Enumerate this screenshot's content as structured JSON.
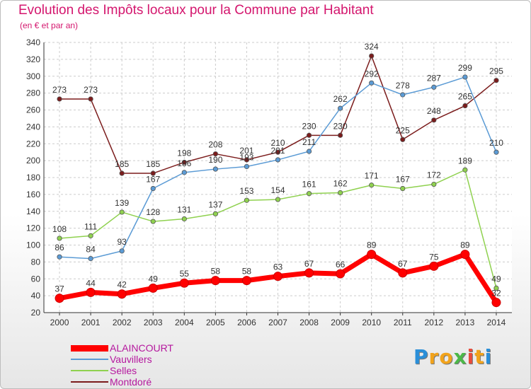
{
  "chart_data": {
    "type": "line",
    "title": "Evolution des Impôts locaux pour la Commune par Habitant",
    "subtitle": "(en € et par an)",
    "xlabel": "",
    "ylabel": "",
    "x": [
      "2000",
      "2001",
      "2002",
      "2003",
      "2004",
      "2005",
      "2006",
      "2007",
      "2008",
      "2009",
      "2010",
      "2011",
      "2012",
      "2013",
      "2014"
    ],
    "ylim": [
      20,
      340
    ],
    "yticks": [
      20,
      40,
      60,
      80,
      100,
      120,
      140,
      160,
      180,
      200,
      220,
      240,
      260,
      280,
      300,
      320,
      340
    ],
    "grid": true,
    "legend_position": "bottom-left",
    "series": [
      {
        "name": "ALAINCOURT",
        "color": "#ff0000",
        "values": [
          37,
          44,
          42,
          49,
          55,
          58,
          58,
          63,
          67,
          66,
          89,
          67,
          75,
          89,
          32
        ]
      },
      {
        "name": "Vauvillers",
        "color": "#5b9bd5",
        "values": [
          86,
          84,
          93,
          167,
          186,
          190,
          193,
          201,
          211,
          262,
          292,
          278,
          287,
          299,
          210
        ]
      },
      {
        "name": "Selles",
        "color": "#8fd14f",
        "values": [
          108,
          111,
          139,
          128,
          131,
          137,
          153,
          154,
          161,
          162,
          171,
          167,
          172,
          189,
          49
        ]
      },
      {
        "name": "Montdoré",
        "color": "#7b1c1c",
        "values": [
          273,
          273,
          185,
          185,
          198,
          208,
          201,
          210,
          230,
          230,
          324,
          225,
          248,
          265,
          295
        ]
      }
    ]
  },
  "logo": {
    "letters": [
      "P",
      "r",
      "o",
      "x",
      "i",
      "t",
      "i"
    ],
    "colors": [
      "#2a8fd9",
      "#f2a31b",
      "#f2a31b",
      "#4cb848",
      "#e94b3c",
      "#f2a31b",
      "#2a8fd9"
    ]
  }
}
